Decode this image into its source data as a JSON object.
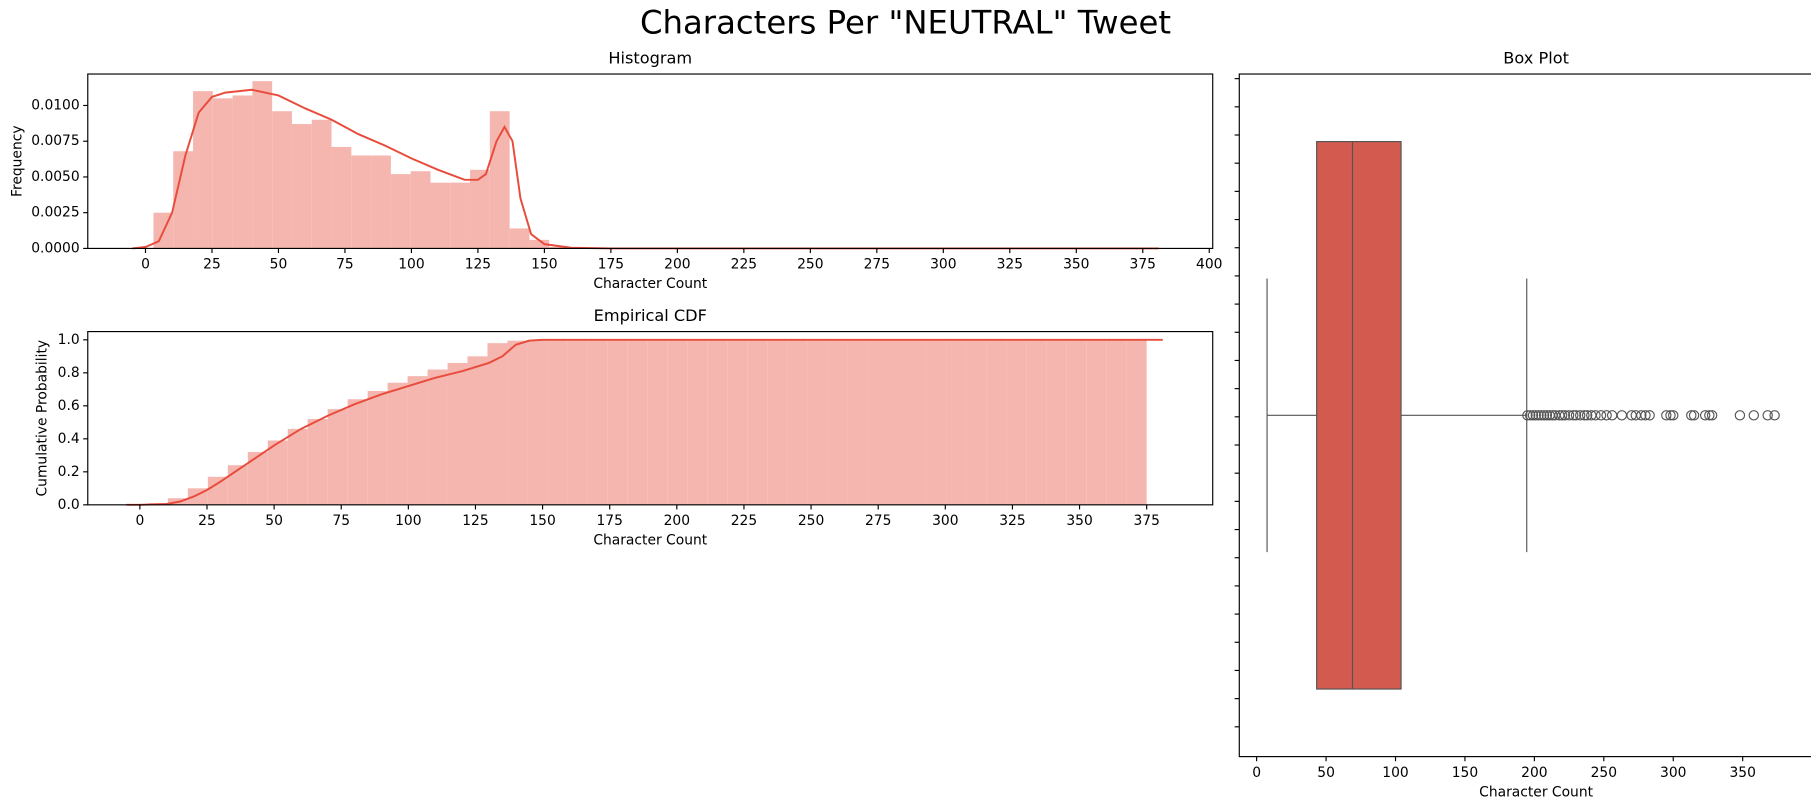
{
  "title": "Characters Per \"NEUTRAL\" Tweet",
  "chart_data": [
    {
      "type": "histogram",
      "title": "Histogram",
      "xlabel": "Character Count",
      "ylabel": "Frequency",
      "bins": [
        3,
        10.44,
        17.88,
        25.32,
        32.76,
        40.2,
        47.64,
        55.08,
        62.52,
        69.96,
        77.4,
        84.84,
        92.28,
        99.72,
        107.16,
        114.6,
        122.04,
        129.48,
        136.92,
        144.36,
        151.8,
        159.24,
        166.68,
        174.12,
        181.56,
        189,
        196.44,
        203.88,
        211.32,
        218.76,
        226.2,
        233.64,
        241.08,
        248.52,
        255.96,
        263.4,
        270.84,
        278.28,
        285.72,
        293.16,
        300.6,
        308.04,
        315.48,
        322.92,
        330.36,
        337.8,
        345.24,
        352.68,
        360.12,
        367.56,
        375
      ],
      "values": [
        0.0025,
        0.0068,
        0.011,
        0.0105,
        0.0107,
        0.0117,
        0.0096,
        0.0087,
        0.009,
        0.0071,
        0.0065,
        0.0065,
        0.0052,
        0.0054,
        0.0046,
        0.0046,
        0.0055,
        0.0096,
        0.0014,
        0.0006,
        0.0001,
        5e-05,
        0,
        0,
        0,
        0,
        0,
        0,
        0,
        0,
        0,
        0,
        0,
        0,
        0,
        0,
        0,
        0,
        0,
        0,
        0,
        0,
        0,
        0,
        0,
        0,
        0,
        0,
        0,
        0
      ],
      "color": "#f5b6b0",
      "line_x": [
        -5,
        0,
        5,
        10,
        15,
        20,
        25,
        30,
        40,
        50,
        60,
        70,
        80,
        90,
        100,
        110,
        120,
        125,
        128,
        132,
        135,
        138,
        141,
        145,
        150,
        160,
        175,
        381
      ],
      "line_y": [
        0,
        0.0001,
        0.0005,
        0.0025,
        0.0065,
        0.0095,
        0.0106,
        0.0109,
        0.0111,
        0.0107,
        0.0098,
        0.009,
        0.008,
        0.0072,
        0.0063,
        0.0055,
        0.0048,
        0.0048,
        0.0052,
        0.0075,
        0.0085,
        0.0075,
        0.0035,
        0.001,
        0.0003,
        5e-05,
        0,
        0
      ],
      "line_color": "#e74c3c",
      "xlim": [
        -21.7,
        401.3
      ],
      "ylim": [
        0,
        0.0122
      ],
      "xticks": [
        0,
        25,
        50,
        75,
        100,
        125,
        150,
        175,
        200,
        225,
        250,
        275,
        300,
        325,
        350,
        375,
        400
      ],
      "yticks": [
        {
          "value": 0,
          "label": "0.0000"
        },
        {
          "value": 0.0025,
          "label": "0.0025"
        },
        {
          "value": 0.005,
          "label": "0.0050"
        },
        {
          "value": 0.0075,
          "label": "0.0075"
        },
        {
          "value": 0.01,
          "label": "0.0100"
        }
      ]
    },
    {
      "type": "histogram",
      "title": "Empirical CDF",
      "xlabel": "Character Count",
      "ylabel": "Cumulative Probability",
      "bins": [
        3,
        10.44,
        17.88,
        25.32,
        32.76,
        40.2,
        47.64,
        55.08,
        62.52,
        69.96,
        77.4,
        84.84,
        92.28,
        99.72,
        107.16,
        114.6,
        122.04,
        129.48,
        136.92,
        144.36,
        151.8,
        159.24,
        166.68,
        174.12,
        181.56,
        189,
        196.44,
        203.88,
        211.32,
        218.76,
        226.2,
        233.64,
        241.08,
        248.52,
        255.96,
        263.4,
        270.84,
        278.28,
        285.72,
        293.16,
        300.6,
        308.04,
        315.48,
        322.92,
        330.36,
        337.8,
        345.24,
        352.68,
        360.12,
        367.56,
        375
      ],
      "values": [
        0.01,
        0.04,
        0.1,
        0.17,
        0.24,
        0.32,
        0.39,
        0.46,
        0.52,
        0.58,
        0.64,
        0.69,
        0.74,
        0.78,
        0.82,
        0.86,
        0.9,
        0.98,
        0.995,
        0.999,
        1,
        1,
        1,
        1,
        1,
        1,
        1,
        1,
        1,
        1,
        1,
        1,
        1,
        1,
        1,
        1,
        1,
        1,
        1,
        1,
        1,
        1,
        1,
        1,
        1,
        1,
        1,
        1,
        1,
        1
      ],
      "color": "#f5b6b0",
      "line_x": [
        -5,
        0,
        10,
        15,
        20,
        25,
        30,
        40,
        50,
        60,
        70,
        80,
        90,
        100,
        110,
        120,
        130,
        135,
        140,
        145,
        150,
        381
      ],
      "line_y": [
        0,
        0,
        0.005,
        0.02,
        0.05,
        0.09,
        0.14,
        0.25,
        0.36,
        0.46,
        0.54,
        0.61,
        0.67,
        0.72,
        0.77,
        0.81,
        0.86,
        0.9,
        0.97,
        0.995,
        1,
        1
      ],
      "line_color": "#e74c3c",
      "xlim": [
        -19.4,
        399.6
      ],
      "ylim": [
        0,
        1.05
      ],
      "xticks": [
        0,
        25,
        50,
        75,
        100,
        125,
        150,
        175,
        200,
        225,
        250,
        275,
        300,
        325,
        350,
        375
      ],
      "yticks": [
        {
          "value": 0,
          "label": "0.0"
        },
        0.2,
        0.4,
        0.6,
        0.8,
        {
          "value": 1,
          "label": "1.0"
        }
      ]
    },
    {
      "type": "box",
      "title": "Box Plot",
      "xlabel": "Character Count",
      "stats": {
        "whislo": 7.5,
        "q1": 43.2,
        "med": 69,
        "q3": 104,
        "whishi": 194.5
      },
      "fliers": [
        195,
        197,
        199,
        201,
        203,
        205,
        207,
        209,
        211,
        213,
        215,
        218,
        220,
        222,
        225,
        228,
        230,
        233,
        236,
        238,
        241,
        244,
        248,
        252,
        256,
        263,
        270,
        273,
        277,
        280,
        283,
        295,
        298,
        300,
        313,
        315,
        323,
        326,
        328,
        348,
        358,
        368,
        373
      ],
      "color": "#d35a4f",
      "xlim": [
        -12.5,
        415
      ],
      "xticks": [
        0,
        50,
        100,
        150,
        200,
        250,
        300,
        350
      ]
    }
  ]
}
